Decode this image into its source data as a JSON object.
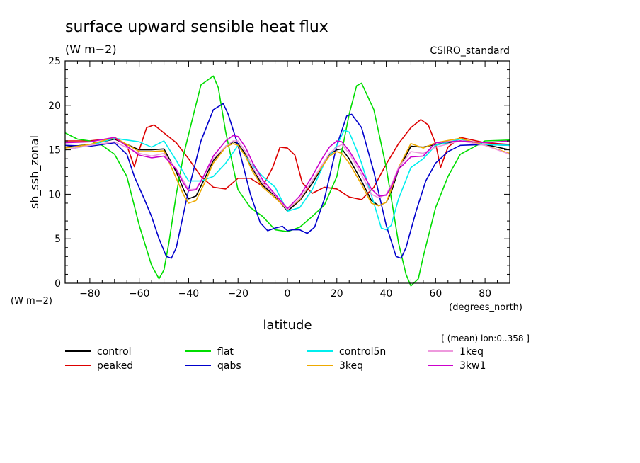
{
  "chart_data": {
    "type": "line",
    "title": "surface upward sensible heat flux",
    "subtitle": "(W m−2)",
    "corner_label": "CSIRO_standard",
    "ylabel": "sh_ssh_zonal",
    "yunit": "(W m−2)",
    "xlabel": "latitude",
    "xunit": "(degrees_north)",
    "footnote": "[ (mean) lon:0..358 ]",
    "xlim": [
      -90,
      90
    ],
    "ylim": [
      0,
      25
    ],
    "xticks": [
      -80,
      -60,
      -40,
      -20,
      0,
      20,
      40,
      60,
      80
    ],
    "yticks": [
      0,
      5,
      10,
      15,
      20,
      25
    ],
    "grid": false,
    "legend_position": "bottom",
    "series": [
      {
        "name": "control",
        "color": "#000000",
        "x": [
          -90,
          -80,
          -70,
          -60,
          -55,
          -50,
          -45,
          -42,
          -40,
          -37,
          -34,
          -30,
          -25,
          -22,
          -20,
          -17,
          -14,
          -10,
          -5,
          0,
          5,
          10,
          14,
          17,
          20,
          22,
          25,
          30,
          34,
          37,
          40,
          42,
          45,
          50,
          55,
          60,
          70,
          80,
          90
        ],
        "y": [
          15.3,
          15.6,
          16.2,
          15.0,
          15.0,
          15.1,
          12.5,
          10.5,
          9.5,
          9.8,
          11.5,
          13.8,
          15.4,
          15.9,
          15.7,
          14.5,
          12.8,
          11.0,
          9.8,
          8.1,
          9.3,
          11.2,
          13.0,
          14.5,
          15.0,
          15.1,
          14.0,
          11.5,
          9.3,
          8.7,
          9.1,
          10.2,
          12.8,
          15.4,
          15.3,
          15.6,
          16.0,
          15.6,
          15.0
        ]
      },
      {
        "name": "peaked",
        "color": "#dd0000",
        "x": [
          -90,
          -80,
          -70,
          -65,
          -62,
          -60,
          -57,
          -54,
          -50,
          -45,
          -40,
          -35,
          -30,
          -25,
          -20,
          -18,
          -15,
          -10,
          -6,
          -3,
          0,
          3,
          6,
          10,
          15,
          20,
          25,
          30,
          35,
          40,
          45,
          50,
          54,
          57,
          60,
          62,
          65,
          70,
          80,
          90
        ],
        "y": [
          16.0,
          16.0,
          16.3,
          15.5,
          13.1,
          15.0,
          17.5,
          17.8,
          16.9,
          15.8,
          14.0,
          12.0,
          10.8,
          10.6,
          11.8,
          11.8,
          11.8,
          10.9,
          13.0,
          15.3,
          15.2,
          14.4,
          11.3,
          10.1,
          10.8,
          10.6,
          9.7,
          9.4,
          10.8,
          13.4,
          15.7,
          17.5,
          18.4,
          17.8,
          15.7,
          13.0,
          15.3,
          16.4,
          15.8,
          15.6
        ]
      },
      {
        "name": "flat",
        "color": "#00dd00",
        "x": [
          -90,
          -85,
          -80,
          -75,
          -70,
          -65,
          -60,
          -55,
          -52,
          -50,
          -48,
          -45,
          -42,
          -38,
          -35,
          -30,
          -28,
          -25,
          -20,
          -15,
          -10,
          -5,
          0,
          5,
          10,
          15,
          20,
          25,
          28,
          30,
          35,
          40,
          45,
          48,
          50,
          53,
          55,
          60,
          65,
          70,
          80,
          90
        ],
        "y": [
          16.9,
          16.2,
          16.0,
          15.5,
          14.5,
          12.0,
          6.5,
          2.0,
          0.5,
          1.5,
          4.5,
          10.0,
          14.5,
          19.0,
          22.3,
          23.3,
          22.0,
          17.0,
          10.5,
          8.5,
          7.5,
          6.0,
          5.8,
          6.3,
          7.5,
          8.8,
          12.0,
          19.0,
          22.2,
          22.5,
          19.5,
          13.0,
          4.5,
          1.0,
          -0.3,
          0.5,
          3.0,
          8.5,
          12.0,
          14.5,
          16.0,
          16.1
        ]
      },
      {
        "name": "qabs",
        "color": "#0000cc",
        "x": [
          -90,
          -80,
          -70,
          -65,
          -62,
          -58,
          -55,
          -52,
          -49,
          -47,
          -45,
          -40,
          -35,
          -30,
          -26,
          -24,
          -20,
          -15,
          -11,
          -8,
          -5,
          -2,
          0,
          2,
          5,
          8,
          11,
          15,
          20,
          24,
          26,
          30,
          35,
          40,
          44,
          46,
          48,
          52,
          56,
          60,
          65,
          70,
          80,
          90
        ],
        "y": [
          15.5,
          15.4,
          15.8,
          14.5,
          12.0,
          9.5,
          7.5,
          5.0,
          3.0,
          2.8,
          4.0,
          10.5,
          16.0,
          19.5,
          20.2,
          19.0,
          15.5,
          10.0,
          6.8,
          5.9,
          6.2,
          6.4,
          5.9,
          6.0,
          6.0,
          5.6,
          6.3,
          9.5,
          15.5,
          18.8,
          19.0,
          17.5,
          12.5,
          6.5,
          3.0,
          2.8,
          4.0,
          8.0,
          11.5,
          13.5,
          14.8,
          15.5,
          15.6,
          15.5
        ]
      },
      {
        "name": "control5n",
        "color": "#00eeee",
        "x": [
          -90,
          -80,
          -70,
          -60,
          -55,
          -50,
          -45,
          -40,
          -35,
          -30,
          -25,
          -20,
          -15,
          -10,
          -5,
          0,
          5,
          10,
          15,
          20,
          23,
          25,
          28,
          30,
          35,
          38,
          40,
          42,
          45,
          50,
          55,
          60,
          70,
          80,
          90
        ],
        "y": [
          15.0,
          15.5,
          16.3,
          15.9,
          15.3,
          16.0,
          13.8,
          11.5,
          11.5,
          12.0,
          13.5,
          15.5,
          13.5,
          12.0,
          10.8,
          8.1,
          8.5,
          10.5,
          13.5,
          15.5,
          17.2,
          17.0,
          15.0,
          13.5,
          9.0,
          6.2,
          6.0,
          6.5,
          9.5,
          13.0,
          14.0,
          15.5,
          16.2,
          15.6,
          15.5
        ]
      },
      {
        "name": "3keq",
        "color": "#eeaa00",
        "x": [
          -90,
          -80,
          -70,
          -60,
          -55,
          -50,
          -45,
          -42,
          -40,
          -37,
          -34,
          -30,
          -25,
          -22,
          -20,
          -17,
          -14,
          -10,
          -5,
          0,
          5,
          10,
          14,
          17,
          20,
          22,
          25,
          30,
          34,
          37,
          40,
          42,
          45,
          50,
          55,
          60,
          70,
          80,
          90
        ],
        "y": [
          15.2,
          15.6,
          16.4,
          14.8,
          14.8,
          14.9,
          11.8,
          9.9,
          9.0,
          9.3,
          11.0,
          13.5,
          15.3,
          15.7,
          15.5,
          14.3,
          12.5,
          10.8,
          9.6,
          8.3,
          9.4,
          11.5,
          13.1,
          14.3,
          14.8,
          14.6,
          13.5,
          11.1,
          9.0,
          8.7,
          9.1,
          10.5,
          13.0,
          15.7,
          15.2,
          15.8,
          16.3,
          15.5,
          14.6
        ]
      },
      {
        "name": "1keq",
        "color": "#ee99dd",
        "x": [
          -90,
          -80,
          -70,
          -60,
          -55,
          -50,
          -45,
          -42,
          -40,
          -37,
          -34,
          -30,
          -25,
          -22,
          -20,
          -17,
          -14,
          -10,
          -5,
          0,
          5,
          10,
          14,
          17,
          20,
          22,
          25,
          30,
          34,
          37,
          40,
          42,
          45,
          50,
          55,
          60,
          70,
          80,
          90
        ],
        "y": [
          15.0,
          15.5,
          15.9,
          14.6,
          14.3,
          14.6,
          12.8,
          11.5,
          10.5,
          10.6,
          12.0,
          14.0,
          15.4,
          16.0,
          16.0,
          14.8,
          13.0,
          11.2,
          9.9,
          8.3,
          9.5,
          11.5,
          13.3,
          14.6,
          15.3,
          15.6,
          14.6,
          12.2,
          10.0,
          9.6,
          10.0,
          11.0,
          13.0,
          14.8,
          14.6,
          15.3,
          16.0,
          15.5,
          14.5
        ]
      },
      {
        "name": "3kw1",
        "color": "#cc00cc",
        "x": [
          -90,
          -80,
          -70,
          -60,
          -55,
          -50,
          -45,
          -42,
          -40,
          -37,
          -34,
          -30,
          -25,
          -22,
          -20,
          -17,
          -14,
          -10,
          -5,
          0,
          5,
          10,
          14,
          17,
          20,
          22,
          25,
          30,
          34,
          37,
          40,
          42,
          45,
          50,
          55,
          60,
          70,
          80,
          90
        ],
        "y": [
          15.8,
          15.9,
          16.4,
          14.4,
          14.1,
          14.3,
          12.8,
          11.2,
          10.4,
          10.5,
          12.0,
          14.3,
          16.0,
          16.6,
          16.5,
          15.3,
          13.5,
          11.6,
          10.0,
          8.4,
          9.8,
          12.0,
          14.0,
          15.3,
          16.0,
          15.9,
          14.9,
          12.6,
          10.6,
          9.8,
          9.9,
          10.8,
          12.8,
          14.2,
          14.3,
          15.8,
          16.0,
          15.8,
          16.0
        ]
      }
    ]
  }
}
